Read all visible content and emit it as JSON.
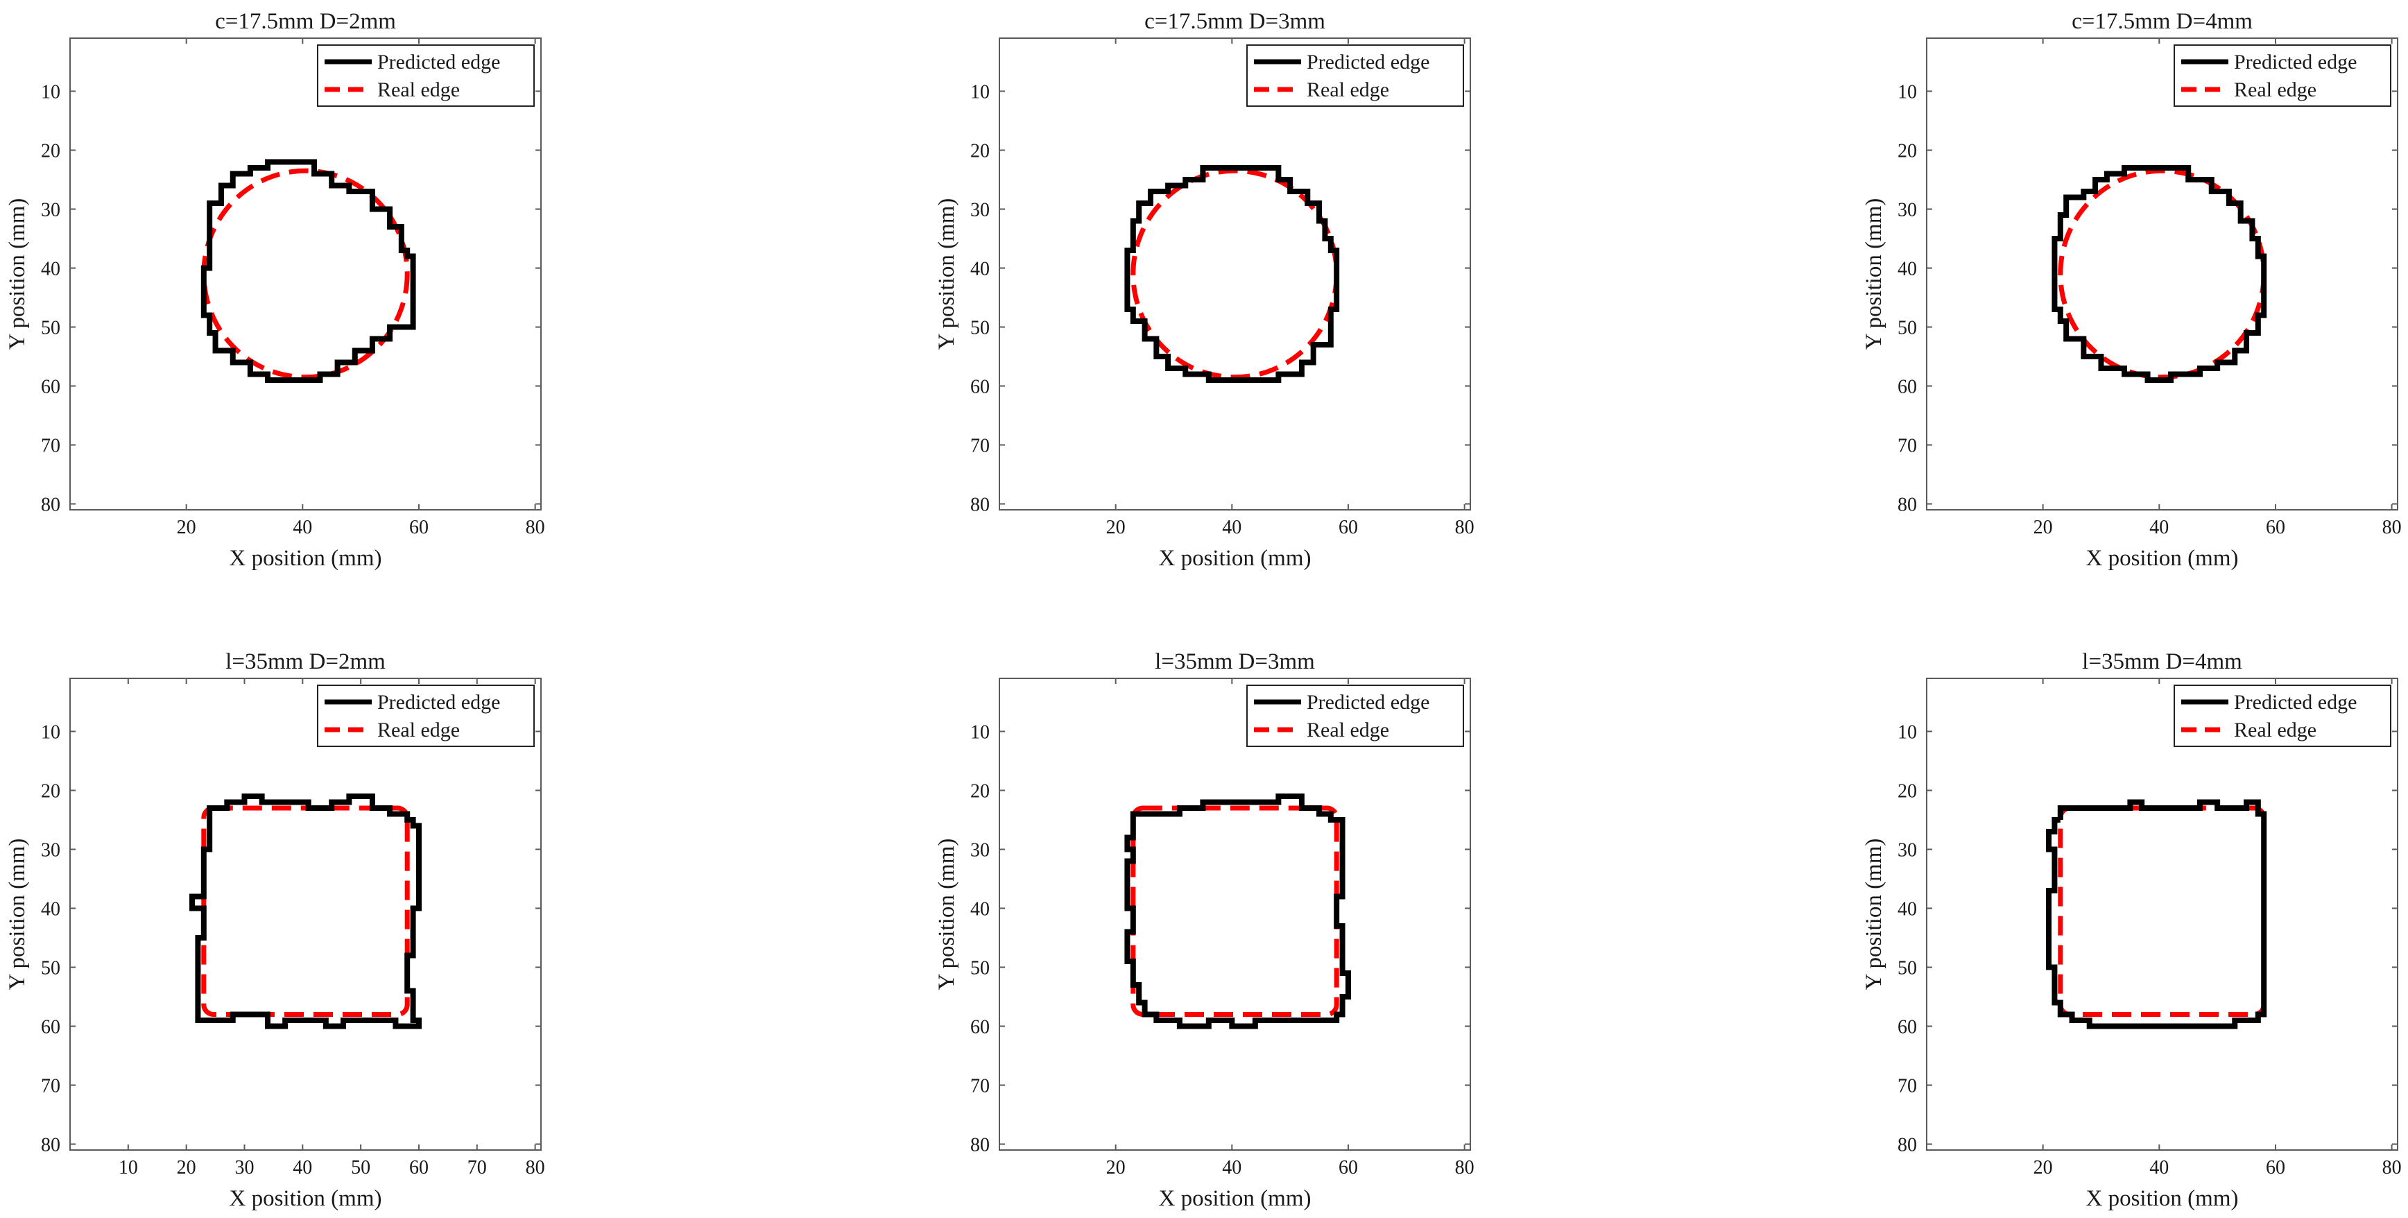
{
  "figure": {
    "legend": {
      "predicted": "Predicted edge",
      "real": "Real edge"
    },
    "colors": {
      "predicted": "#000000",
      "real": "#ff0000",
      "axis": "#5a5a5a"
    }
  },
  "chart_data": [
    {
      "type": "line",
      "title": "c=17.5mm D=2mm",
      "xlabel": "X position (mm)",
      "ylabel": "Y position (mm)",
      "xlim": [
        0,
        81
      ],
      "ylim": [
        1,
        81
      ],
      "y_reversed": true,
      "xticks": [
        20,
        40,
        60,
        80
      ],
      "yticks": [
        10,
        20,
        30,
        40,
        50,
        60,
        70,
        80
      ],
      "grid": false,
      "legend_position": "top-right",
      "real_edge": {
        "shape": "circle",
        "center": [
          40.5,
          41
        ],
        "diameter": 35
      },
      "series": [
        {
          "name": "Predicted edge",
          "style": "solid-black",
          "points": [
            [
              37,
              22
            ],
            [
              42,
              22
            ],
            [
              45,
              24
            ],
            [
              48,
              26
            ],
            [
              52,
              27
            ],
            [
              55,
              30
            ],
            [
              57,
              33
            ],
            [
              58,
              37
            ],
            [
              59,
              38
            ],
            [
              59,
              50
            ],
            [
              55,
              50
            ],
            [
              52,
              52
            ],
            [
              49,
              54
            ],
            [
              46,
              56
            ],
            [
              43,
              58
            ],
            [
              39,
              59
            ],
            [
              34,
              59
            ],
            [
              31,
              58
            ],
            [
              28,
              56
            ],
            [
              25,
              54
            ],
            [
              24,
              51
            ],
            [
              23,
              48
            ],
            [
              23,
              44
            ],
            [
              24,
              40
            ],
            [
              24,
              33
            ],
            [
              26,
              29
            ],
            [
              28,
              26
            ],
            [
              31,
              24
            ],
            [
              34,
              23
            ],
            [
              37,
              22
            ]
          ]
        },
        {
          "name": "Real edge",
          "style": "dashed-red"
        }
      ]
    },
    {
      "type": "line",
      "title": "c=17.5mm D=3mm",
      "xlabel": "X position (mm)",
      "ylabel": "Y position (mm)",
      "xlim": [
        0,
        81
      ],
      "ylim": [
        1,
        81
      ],
      "y_reversed": true,
      "xticks": [
        20,
        40,
        60,
        80
      ],
      "yticks": [
        10,
        20,
        30,
        40,
        50,
        60,
        70,
        80
      ],
      "grid": false,
      "legend_position": "top-right",
      "real_edge": {
        "shape": "circle",
        "center": [
          40.5,
          41
        ],
        "diameter": 35
      },
      "series": [
        {
          "name": "Predicted edge",
          "style": "solid-black",
          "points": [
            [
              39,
              23
            ],
            [
              48,
              23
            ],
            [
              50,
              25
            ],
            [
              53,
              27
            ],
            [
              55,
              29
            ],
            [
              56,
              32
            ],
            [
              57,
              35
            ],
            [
              58,
              37
            ],
            [
              58,
              44
            ],
            [
              57,
              47
            ],
            [
              57,
              52
            ],
            [
              54,
              53
            ],
            [
              52,
              56
            ],
            [
              48,
              58
            ],
            [
              44,
              59
            ],
            [
              36,
              59
            ],
            [
              32,
              58
            ],
            [
              29,
              57
            ],
            [
              27,
              55
            ],
            [
              25,
              52
            ],
            [
              23,
              49
            ],
            [
              22,
              47
            ],
            [
              22,
              40
            ],
            [
              23,
              37
            ],
            [
              24,
              32
            ],
            [
              26,
              29
            ],
            [
              29,
              27
            ],
            [
              32,
              26
            ],
            [
              35,
              25
            ],
            [
              39,
              23
            ]
          ]
        },
        {
          "name": "Real edge",
          "style": "dashed-red"
        }
      ]
    },
    {
      "type": "line",
      "title": "c=17.5mm D=4mm",
      "xlabel": "X position (mm)",
      "ylabel": "Y position (mm)",
      "xlim": [
        0,
        81
      ],
      "ylim": [
        1,
        81
      ],
      "y_reversed": true,
      "xticks": [
        20,
        40,
        60,
        80
      ],
      "yticks": [
        10,
        20,
        30,
        40,
        50,
        60,
        70,
        80
      ],
      "grid": false,
      "legend_position": "top-right",
      "real_edge": {
        "shape": "circle",
        "center": [
          40.5,
          41
        ],
        "diameter": 35
      },
      "series": [
        {
          "name": "Predicted edge",
          "style": "solid-black",
          "points": [
            [
              36,
              23
            ],
            [
              45,
              23
            ],
            [
              49,
              25
            ],
            [
              52,
              27
            ],
            [
              54,
              29
            ],
            [
              56,
              32
            ],
            [
              57,
              35
            ],
            [
              58,
              38
            ],
            [
              58,
              45
            ],
            [
              57,
              48
            ],
            [
              55,
              51
            ],
            [
              53,
              54
            ],
            [
              50,
              56
            ],
            [
              47,
              57
            ],
            [
              42,
              58
            ],
            [
              38,
              59
            ],
            [
              34,
              58
            ],
            [
              30,
              57
            ],
            [
              27,
              55
            ],
            [
              24,
              52
            ],
            [
              23,
              49
            ],
            [
              22,
              47
            ],
            [
              22,
              39
            ],
            [
              23,
              35
            ],
            [
              24,
              31
            ],
            [
              27,
              28
            ],
            [
              29,
              27
            ],
            [
              31,
              25
            ],
            [
              34,
              24
            ],
            [
              36,
              23
            ]
          ]
        },
        {
          "name": "Real edge",
          "style": "dashed-red"
        }
      ]
    },
    {
      "type": "line",
      "title": "l=35mm D=2mm",
      "xlabel": "X position (mm)",
      "ylabel": "Y position (mm)",
      "xlim": [
        0,
        81
      ],
      "ylim": [
        1,
        81
      ],
      "y_reversed": true,
      "xticks": [
        10,
        20,
        30,
        40,
        50,
        60,
        70,
        80
      ],
      "yticks": [
        10,
        20,
        30,
        40,
        50,
        60,
        70,
        80
      ],
      "grid": false,
      "legend_position": "top-right",
      "real_edge": {
        "shape": "rounded-square",
        "x": [
          23,
          58
        ],
        "y": [
          23,
          58
        ]
      },
      "series": [
        {
          "name": "Predicted edge",
          "style": "solid-black",
          "points": [
            [
              24,
              24
            ],
            [
              27,
              23
            ],
            [
              30,
              22
            ],
            [
              33,
              21
            ],
            [
              36,
              22
            ],
            [
              41,
              22
            ],
            [
              45,
              23
            ],
            [
              48,
              22
            ],
            [
              52,
              21
            ],
            [
              55,
              23
            ],
            [
              58,
              24
            ],
            [
              59,
              25
            ],
            [
              60,
              26
            ],
            [
              60,
              36
            ],
            [
              59,
              40
            ],
            [
              59,
              46
            ],
            [
              58,
              48
            ],
            [
              58,
              51
            ],
            [
              59,
              54
            ],
            [
              59,
              57
            ],
            [
              60,
              59
            ],
            [
              56,
              60
            ],
            [
              51,
              59
            ],
            [
              47,
              59
            ],
            [
              44,
              60
            ],
            [
              41,
              59
            ],
            [
              37,
              59
            ],
            [
              34,
              60
            ],
            [
              28,
              58
            ],
            [
              22,
              59
            ],
            [
              22,
              53
            ],
            [
              22,
              47
            ],
            [
              23,
              45
            ],
            [
              22,
              40
            ],
            [
              21,
              40
            ],
            [
              23,
              38
            ],
            [
              23,
              35
            ],
            [
              24,
              30
            ],
            [
              24,
              24
            ]
          ]
        },
        {
          "name": "Real edge",
          "style": "dashed-red"
        }
      ]
    },
    {
      "type": "line",
      "title": "l=35mm D=3mm",
      "xlabel": "X position (mm)",
      "ylabel": "Y position (mm)",
      "xlim": [
        0,
        81
      ],
      "ylim": [
        1,
        81
      ],
      "y_reversed": true,
      "xticks": [
        20,
        40,
        60,
        80
      ],
      "yticks": [
        10,
        20,
        30,
        40,
        50,
        60,
        70,
        80
      ],
      "grid": false,
      "legend_position": "top-right",
      "real_edge": {
        "shape": "rounded-square",
        "x": [
          23,
          58
        ],
        "y": [
          23,
          58
        ]
      },
      "series": [
        {
          "name": "Predicted edge",
          "style": "solid-black",
          "points": [
            [
              23,
              26
            ],
            [
              27,
              24
            ],
            [
              31,
              24
            ],
            [
              35,
              23
            ],
            [
              38,
              22
            ],
            [
              44,
              22
            ],
            [
              48,
              22
            ],
            [
              52,
              21
            ],
            [
              55,
              23
            ],
            [
              57,
              24
            ],
            [
              59,
              25
            ],
            [
              59,
              34
            ],
            [
              58,
              38
            ],
            [
              59,
              43
            ],
            [
              59,
              48
            ],
            [
              60,
              51
            ],
            [
              59,
              55
            ],
            [
              58,
              58
            ],
            [
              55,
              59
            ],
            [
              48,
              59
            ],
            [
              44,
              59
            ],
            [
              40,
              60
            ],
            [
              36,
              59
            ],
            [
              31,
              60
            ],
            [
              27,
              59
            ],
            [
              25,
              58
            ],
            [
              24,
              56
            ],
            [
              23,
              53
            ],
            [
              22,
              49
            ],
            [
              23,
              44
            ],
            [
              22,
              40
            ],
            [
              22,
              35
            ],
            [
              23,
              32
            ],
            [
              22,
              30
            ],
            [
              23,
              28
            ],
            [
              23,
              26
            ]
          ]
        },
        {
          "name": "Real edge",
          "style": "dashed-red"
        }
      ]
    },
    {
      "type": "line",
      "title": "l=35mm D=4mm",
      "xlabel": "X position (mm)",
      "ylabel": "Y position (mm)",
      "xlim": [
        0,
        81
      ],
      "ylim": [
        1,
        81
      ],
      "y_reversed": true,
      "xticks": [
        20,
        40,
        60,
        80
      ],
      "yticks": [
        10,
        20,
        30,
        40,
        50,
        60,
        70,
        80
      ],
      "grid": false,
      "legend_position": "top-right",
      "real_edge": {
        "shape": "rounded-square",
        "x": [
          23,
          58
        ],
        "y": [
          23,
          58
        ]
      },
      "series": [
        {
          "name": "Predicted edge",
          "style": "solid-black",
          "points": [
            [
              23,
              25
            ],
            [
              25,
              23
            ],
            [
              30,
              23
            ],
            [
              35,
              23
            ],
            [
              37,
              22
            ],
            [
              40,
              23
            ],
            [
              47,
              23
            ],
            [
              50,
              22
            ],
            [
              55,
              23
            ],
            [
              57,
              22
            ],
            [
              58,
              24
            ],
            [
              58,
              40
            ],
            [
              58,
              50
            ],
            [
              58,
              56
            ],
            [
              57,
              58
            ],
            [
              53,
              59
            ],
            [
              45,
              60
            ],
            [
              35,
              60
            ],
            [
              28,
              60
            ],
            [
              25,
              59
            ],
            [
              23,
              58
            ],
            [
              22,
              56
            ],
            [
              22,
              52
            ],
            [
              21,
              50
            ],
            [
              21,
              44
            ],
            [
              21,
              40
            ],
            [
              22,
              37
            ],
            [
              22,
              32
            ],
            [
              21,
              30
            ],
            [
              22,
              27
            ],
            [
              23,
              25
            ]
          ]
        },
        {
          "name": "Real edge",
          "style": "dashed-red"
        }
      ]
    }
  ]
}
